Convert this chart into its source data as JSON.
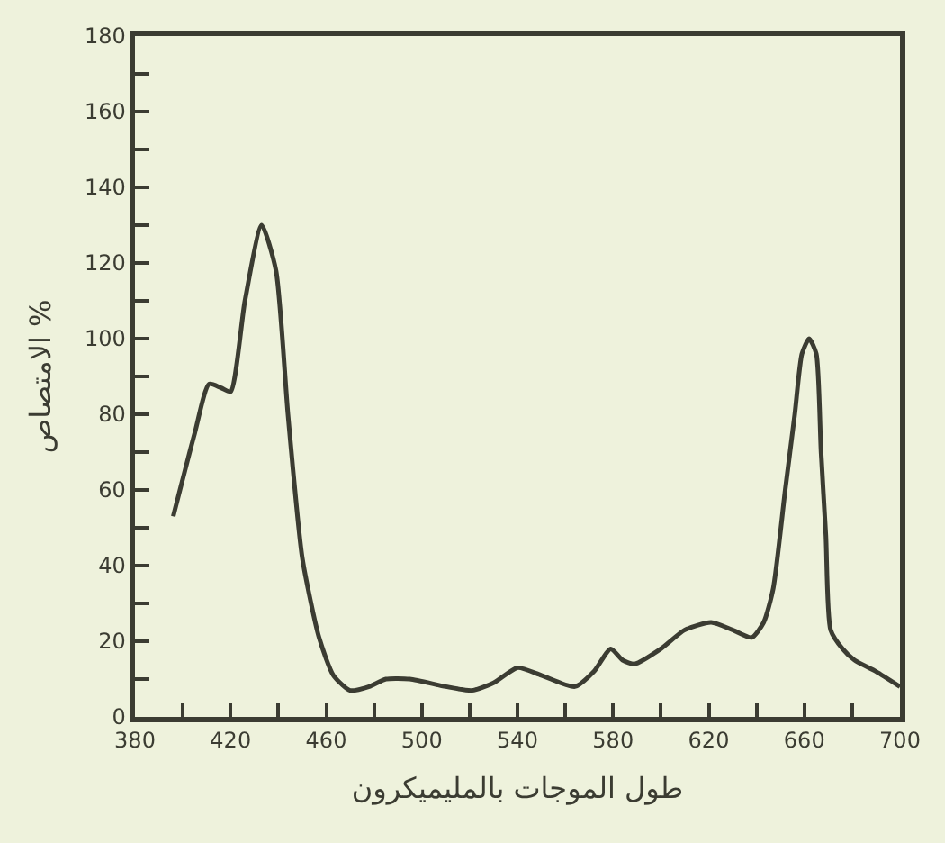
{
  "chart_data": {
    "type": "line",
    "xlabel": "طول الموجات بالمليميكرون",
    "ylabel": "الامتصاص %",
    "x": [
      396,
      405,
      411,
      416,
      420,
      426,
      433,
      439,
      444,
      450,
      457,
      463,
      470,
      478,
      485,
      495,
      510,
      521,
      530,
      540,
      550,
      564,
      572,
      579,
      584,
      589,
      600,
      610,
      621,
      630,
      638,
      643,
      647,
      652,
      656,
      659,
      662,
      665,
      667,
      669,
      671,
      676,
      681,
      690,
      700
    ],
    "series": [
      {
        "color": "#3b3c32",
        "values": [
          53,
          75,
          88,
          87,
          86,
          110,
          130,
          118,
          80,
          42,
          21,
          11,
          7,
          8,
          10,
          10,
          8,
          7,
          9,
          13,
          11,
          8,
          12,
          18,
          15,
          14,
          18,
          23,
          25,
          23,
          21,
          25,
          34,
          60,
          80,
          96,
          100,
          96,
          70,
          48,
          23,
          18,
          15,
          12,
          8
        ]
      }
    ],
    "xlim": [
      380,
      700
    ],
    "ylim": [
      0,
      180
    ],
    "xticks": [
      380,
      {
        "value": 400,
        "label": null
      },
      420,
      {
        "value": 440,
        "label": null
      },
      460,
      {
        "value": 480,
        "label": null
      },
      500,
      {
        "value": 520,
        "label": null
      },
      540,
      {
        "value": 560,
        "label": null
      },
      580,
      {
        "value": 600,
        "label": null
      },
      620,
      {
        "value": 640,
        "label": null
      },
      660,
      {
        "value": 680,
        "label": null
      },
      700
    ],
    "yticks": [
      0,
      {
        "value": 10,
        "label": null
      },
      20,
      {
        "value": 30,
        "label": null
      },
      40,
      {
        "value": 50,
        "label": null
      },
      60,
      {
        "value": 70,
        "label": null
      },
      80,
      {
        "value": 90,
        "label": null
      },
      100,
      {
        "value": 110,
        "label": null
      },
      120,
      {
        "value": 130,
        "label": null
      },
      140,
      {
        "value": 150,
        "label": null
      },
      160,
      {
        "value": 170,
        "label": null
      },
      180
    ],
    "grid": false,
    "marker": "none",
    "line_style": "solid"
  }
}
